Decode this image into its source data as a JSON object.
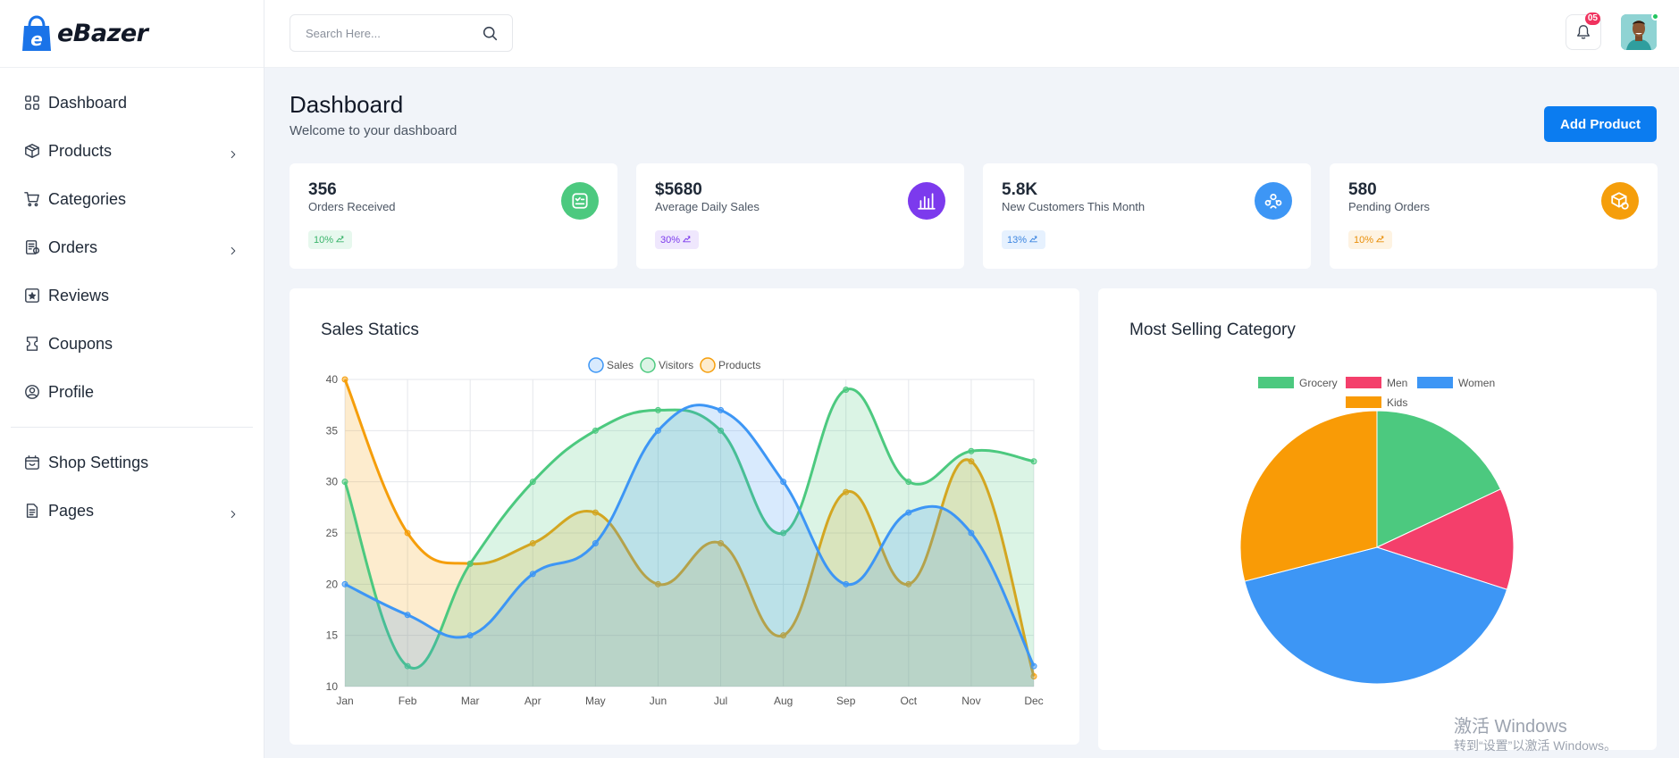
{
  "app": {
    "brand": "eBazer"
  },
  "colors": {
    "accent": "#0b7cf0",
    "green": "#4cc97f",
    "purple": "#7c3aed",
    "blue": "#3d96f5",
    "orange": "#f59e0b",
    "pink": "#f43f6b"
  },
  "sidebar": {
    "items": [
      {
        "label": "Dashboard",
        "icon": "grid-icon",
        "has_chevron": false
      },
      {
        "label": "Products",
        "icon": "box-icon",
        "has_chevron": true
      },
      {
        "label": "Categories",
        "icon": "cart-icon",
        "has_chevron": false
      },
      {
        "label": "Orders",
        "icon": "clipboard-icon",
        "has_chevron": true
      },
      {
        "label": "Reviews",
        "icon": "star-icon",
        "has_chevron": false
      },
      {
        "label": "Coupons",
        "icon": "ticket-icon",
        "has_chevron": false
      },
      {
        "label": "Profile",
        "icon": "user-circle-icon",
        "has_chevron": false
      }
    ],
    "items_bottom": [
      {
        "label": "Shop Settings",
        "icon": "shop-icon",
        "has_chevron": false
      },
      {
        "label": "Pages",
        "icon": "file-icon",
        "has_chevron": true
      }
    ]
  },
  "header": {
    "search_placeholder": "Search Here...",
    "notification_count": "05"
  },
  "page": {
    "title": "Dashboard",
    "subtitle": "Welcome to your dashboard",
    "add_button": "Add Product"
  },
  "stats": [
    {
      "value": "356",
      "label": "Orders Received",
      "pill": "10%",
      "color": "#4cc97f",
      "pill_bg": "#e7f8ee",
      "pill_fg": "#3bb46b",
      "icon": "receipt-icon"
    },
    {
      "value": "$5680",
      "label": "Average Daily Sales",
      "pill": "30%",
      "color": "#7c3aed",
      "pill_bg": "#efe7fd",
      "pill_fg": "#7c3aed",
      "icon": "bar-chart-icon"
    },
    {
      "value": "5.8K",
      "label": "New Customers This Month",
      "pill": "13%",
      "color": "#3d96f5",
      "pill_bg": "#e6f1fe",
      "pill_fg": "#3d86e0",
      "icon": "users-icon"
    },
    {
      "value": "580",
      "label": "Pending Orders",
      "pill": "10%",
      "color": "#f59e0b",
      "pill_bg": "#fef3e2",
      "pill_fg": "#e98f0a",
      "icon": "package-icon"
    }
  ],
  "chart_data": [
    {
      "type": "area",
      "title": "Sales Statics",
      "categories": [
        "Jan",
        "Feb",
        "Mar",
        "Apr",
        "May",
        "Jun",
        "Jul",
        "Aug",
        "Sep",
        "Oct",
        "Nov",
        "Dec"
      ],
      "ylim": [
        10,
        40
      ],
      "yticks": [
        10,
        15,
        20,
        25,
        30,
        35,
        40
      ],
      "grid": true,
      "legend_position": "top",
      "series": [
        {
          "name": "Sales",
          "color": "#3d96f5",
          "fill": "rgba(61,150,245,0.2)",
          "values": [
            20,
            17,
            15,
            21,
            24,
            35,
            37,
            30,
            20,
            27,
            25,
            12
          ]
        },
        {
          "name": "Visitors",
          "color": "#4cc97f",
          "fill": "rgba(76,201,127,0.2)",
          "values": [
            30,
            12,
            22,
            30,
            35,
            37,
            35,
            25,
            39,
            30,
            33,
            32
          ]
        },
        {
          "name": "Products",
          "color": "#f59e0b",
          "fill": "rgba(245,158,11,0.2)",
          "values": [
            40,
            25,
            22,
            24,
            27,
            20,
            24,
            15,
            29,
            20,
            32,
            11
          ]
        }
      ]
    },
    {
      "type": "pie",
      "title": "Most Selling Category",
      "legend_position": "top",
      "series": [
        {
          "name": "Grocery",
          "color": "#4cc97f",
          "value": 18
        },
        {
          "name": "Men",
          "color": "#f43f6b",
          "value": 12
        },
        {
          "name": "Women",
          "color": "#3d96f5",
          "value": 41
        },
        {
          "name": "Kids",
          "color": "#f99b06",
          "value": 29
        }
      ]
    }
  ],
  "watermark": {
    "line1": "激活 Windows",
    "line2": "转到“设置”以激活 Windows。"
  }
}
